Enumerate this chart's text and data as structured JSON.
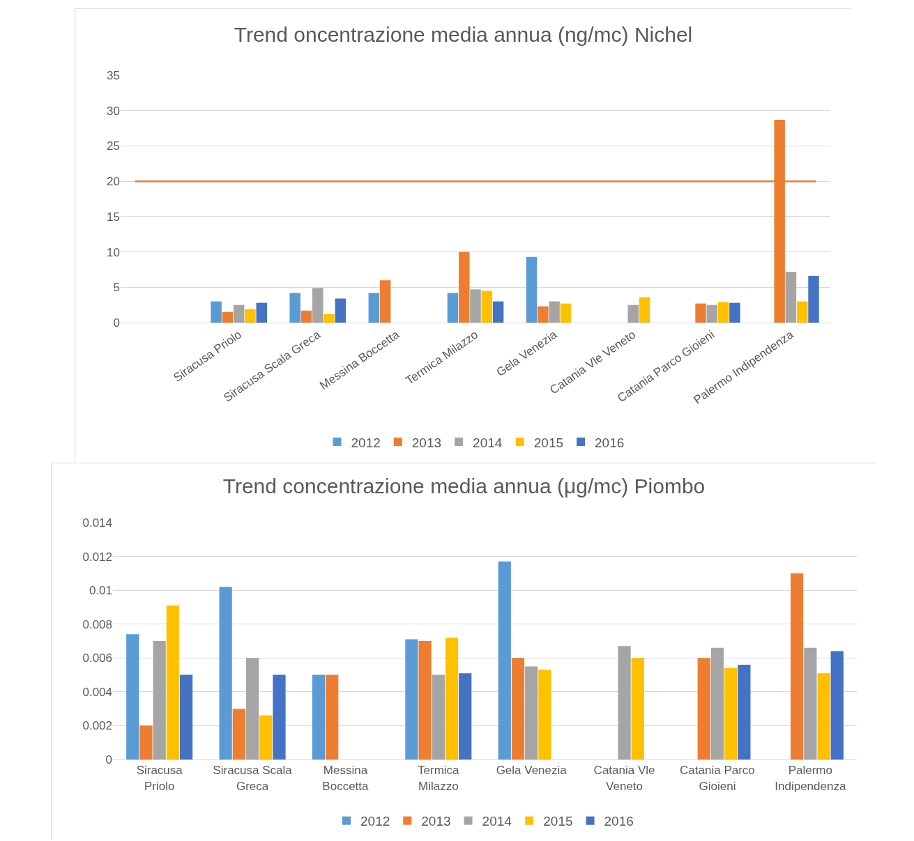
{
  "chart_data": [
    {
      "type": "bar",
      "title": "Trend oncentrazione media annua (ng/mc) Nichel",
      "categories": [
        null,
        "Siracusa Priolo",
        "Siracusa Scala Greca",
        "Messina Boccetta",
        "Termica Milazzo",
        "Gela Venezia",
        "Catania Vle Veneto",
        "Catania Parco Gioieni",
        "Palermo Indipendenza"
      ],
      "series": [
        {
          "name": "2012",
          "color": "#5b9bd5",
          "values": [
            null,
            3.0,
            4.2,
            4.2,
            4.2,
            9.3,
            null,
            null,
            null
          ]
        },
        {
          "name": "2013",
          "color": "#ed7d31",
          "values": [
            null,
            1.5,
            1.7,
            6.0,
            10.0,
            2.3,
            null,
            2.7,
            28.7
          ]
        },
        {
          "name": "2014",
          "color": "#a5a5a5",
          "values": [
            null,
            2.5,
            4.9,
            null,
            4.7,
            3.0,
            2.5,
            2.5,
            7.2
          ]
        },
        {
          "name": "2015",
          "color": "#ffc000",
          "values": [
            null,
            1.9,
            1.2,
            null,
            4.5,
            2.7,
            3.6,
            2.9,
            3.0
          ]
        },
        {
          "name": "2016",
          "color": "#4472c4",
          "values": [
            null,
            2.8,
            3.4,
            null,
            3.0,
            null,
            null,
            2.8,
            6.6
          ]
        }
      ],
      "ylim": [
        0,
        35
      ],
      "yticks": [
        0,
        5,
        10,
        15,
        20,
        25,
        30,
        35
      ],
      "grid": "y",
      "legend": "bottom",
      "ref_lines": [
        {
          "axis": "y",
          "value": 20,
          "color": "#ed7d31"
        }
      ]
    },
    {
      "type": "bar",
      "title": "Trend concentrazione media annua (μg/mc) Piombo",
      "categories": [
        "Siracusa Priolo",
        "Siracusa Scala Greca",
        "Messina Boccetta",
        "Termica Milazzo",
        "Gela Venezia",
        "Catania Vle Veneto",
        "Catania Parco Gioieni",
        "Palermo Indipendenza"
      ],
      "series": [
        {
          "name": "2012",
          "color": "#5b9bd5",
          "values": [
            0.0074,
            0.0102,
            0.005,
            0.0071,
            0.0117,
            null,
            null,
            null
          ]
        },
        {
          "name": "2013",
          "color": "#ed7d31",
          "values": [
            0.002,
            0.003,
            0.005,
            0.007,
            0.006,
            null,
            0.006,
            0.011
          ]
        },
        {
          "name": "2014",
          "color": "#a5a5a5",
          "values": [
            0.007,
            0.006,
            null,
            0.005,
            0.0055,
            0.0067,
            0.0066,
            0.0066
          ]
        },
        {
          "name": "2015",
          "color": "#ffc000",
          "values": [
            0.0091,
            0.0026,
            null,
            0.0072,
            0.0053,
            0.006,
            0.0054,
            0.0051
          ]
        },
        {
          "name": "2016",
          "color": "#4472c4",
          "values": [
            0.005,
            0.005,
            null,
            0.0051,
            null,
            null,
            0.0056,
            0.0064
          ]
        }
      ],
      "ylim": [
        0,
        0.014
      ],
      "yticks": [
        0,
        0.002,
        0.004,
        0.006,
        0.008,
        0.01,
        0.012,
        0.014
      ],
      "grid": "y",
      "legend": "bottom"
    }
  ]
}
